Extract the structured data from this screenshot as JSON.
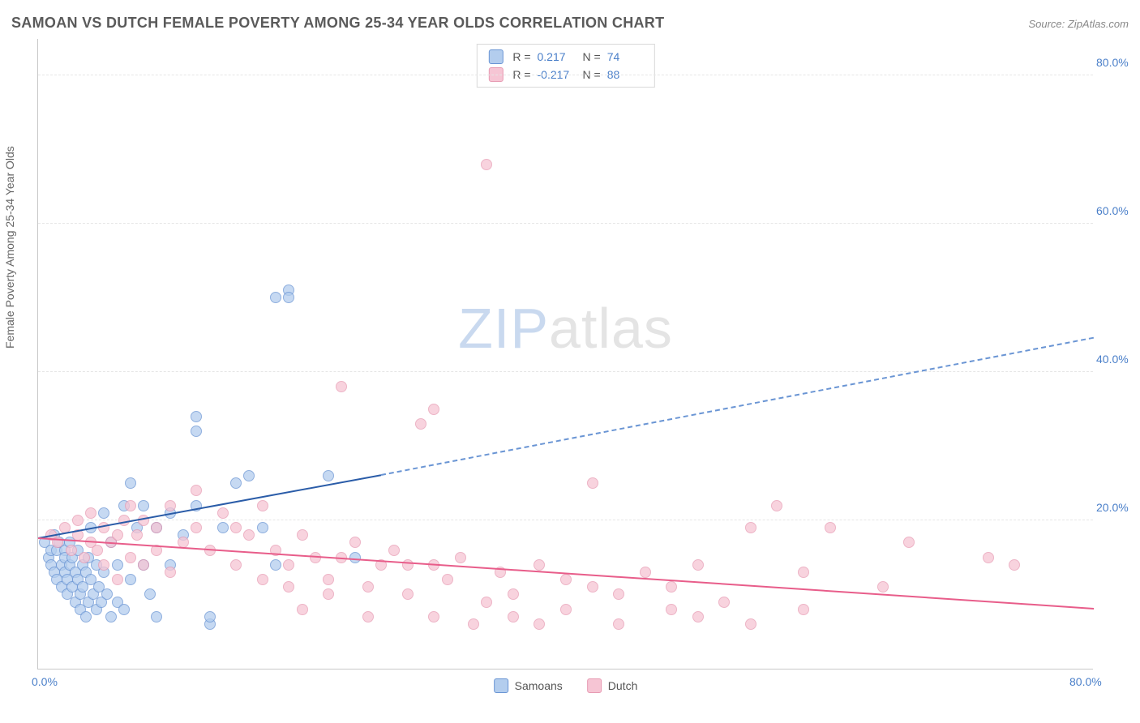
{
  "header": {
    "title": "SAMOAN VS DUTCH FEMALE POVERTY AMONG 25-34 YEAR OLDS CORRELATION CHART",
    "source_prefix": "Source: ",
    "source_name": "ZipAtlas.com"
  },
  "watermark": {
    "zip": "ZIP",
    "atlas": "atlas"
  },
  "chart": {
    "type": "scatter",
    "ylabel": "Female Poverty Among 25-34 Year Olds",
    "background_color": "#ffffff",
    "grid_color": "#e6e6e6",
    "axis_color": "#c8c8c8",
    "xlim": [
      0,
      80
    ],
    "ylim": [
      0,
      85
    ],
    "yticks": [
      {
        "v": 20,
        "label": "20.0%"
      },
      {
        "v": 40,
        "label": "40.0%"
      },
      {
        "v": 60,
        "label": "60.0%"
      },
      {
        "v": 80,
        "label": "80.0%"
      }
    ],
    "xticks": [
      {
        "v": 0,
        "label": "0.0%"
      },
      {
        "v": 80,
        "label": "80.0%"
      }
    ],
    "legend_top": [
      {
        "color_fill": "#b3cdee",
        "color_border": "#6a95d4",
        "R_label": "R =",
        "R_val": "0.217",
        "N_label": "N =",
        "N_val": "74"
      },
      {
        "color_fill": "#f6c5d4",
        "color_border": "#e79bb3",
        "R_label": "R =",
        "R_val": "-0.217",
        "N_label": "N =",
        "N_val": "88"
      }
    ],
    "legend_bottom": [
      {
        "color_fill": "#b3cdee",
        "color_border": "#6a95d4",
        "label": "Samoans"
      },
      {
        "color_fill": "#f6c5d4",
        "color_border": "#e79bb3",
        "label": "Dutch"
      }
    ],
    "trend_lines": [
      {
        "x1": 0,
        "y1": 17.5,
        "x2": 26,
        "y2": 26.0,
        "style": "solid-blue"
      },
      {
        "x1": 26,
        "y1": 26.0,
        "x2": 80,
        "y2": 44.5,
        "style": "dash-blue"
      },
      {
        "x1": 0,
        "y1": 17.5,
        "x2": 80,
        "y2": 8.0,
        "style": "solid-pink"
      }
    ],
    "series": [
      {
        "name": "Samoans",
        "fill": "#b3cdee",
        "stroke": "#6a95d4",
        "opacity": 0.75,
        "radius": 7,
        "points": [
          [
            0.5,
            17
          ],
          [
            0.8,
            15
          ],
          [
            1,
            16
          ],
          [
            1,
            14
          ],
          [
            1.2,
            18
          ],
          [
            1.2,
            13
          ],
          [
            1.4,
            16
          ],
          [
            1.4,
            12
          ],
          [
            1.6,
            17
          ],
          [
            1.8,
            14
          ],
          [
            1.8,
            11
          ],
          [
            2,
            16
          ],
          [
            2,
            15
          ],
          [
            2,
            13
          ],
          [
            2.2,
            12
          ],
          [
            2.2,
            10
          ],
          [
            2.4,
            17
          ],
          [
            2.4,
            14
          ],
          [
            2.6,
            15
          ],
          [
            2.6,
            11
          ],
          [
            2.8,
            13
          ],
          [
            2.8,
            9
          ],
          [
            3,
            16
          ],
          [
            3,
            12
          ],
          [
            3.2,
            10
          ],
          [
            3.2,
            8
          ],
          [
            3.4,
            14
          ],
          [
            3.4,
            11
          ],
          [
            3.6,
            13
          ],
          [
            3.6,
            7
          ],
          [
            3.8,
            15
          ],
          [
            3.8,
            9
          ],
          [
            4,
            19
          ],
          [
            4,
            12
          ],
          [
            4.2,
            10
          ],
          [
            4.4,
            14
          ],
          [
            4.4,
            8
          ],
          [
            4.6,
            11
          ],
          [
            4.8,
            9
          ],
          [
            5,
            21
          ],
          [
            5,
            13
          ],
          [
            5.2,
            10
          ],
          [
            5.5,
            7
          ],
          [
            5.5,
            17
          ],
          [
            6,
            9
          ],
          [
            6,
            14
          ],
          [
            6.5,
            22
          ],
          [
            6.5,
            8
          ],
          [
            7,
            12
          ],
          [
            7,
            25
          ],
          [
            7.5,
            19
          ],
          [
            8,
            14
          ],
          [
            8,
            22
          ],
          [
            8.5,
            10
          ],
          [
            9,
            19
          ],
          [
            9,
            7
          ],
          [
            10,
            21
          ],
          [
            10,
            14
          ],
          [
            11,
            18
          ],
          [
            12,
            32
          ],
          [
            12,
            34
          ],
          [
            12,
            22
          ],
          [
            13,
            6
          ],
          [
            13,
            7
          ],
          [
            14,
            19
          ],
          [
            15,
            25
          ],
          [
            16,
            26
          ],
          [
            17,
            19
          ],
          [
            18,
            14
          ],
          [
            18,
            50
          ],
          [
            19,
            51
          ],
          [
            19,
            50
          ],
          [
            22,
            26
          ],
          [
            24,
            15
          ]
        ]
      },
      {
        "name": "Dutch",
        "fill": "#f6c5d4",
        "stroke": "#e79bb3",
        "opacity": 0.75,
        "radius": 7,
        "points": [
          [
            1,
            18
          ],
          [
            1.5,
            17
          ],
          [
            2,
            19
          ],
          [
            2.5,
            16
          ],
          [
            3,
            18
          ],
          [
            3,
            20
          ],
          [
            3.5,
            15
          ],
          [
            4,
            17
          ],
          [
            4,
            21
          ],
          [
            4.5,
            16
          ],
          [
            5,
            19
          ],
          [
            5,
            14
          ],
          [
            5.5,
            17
          ],
          [
            6,
            18
          ],
          [
            6,
            12
          ],
          [
            6.5,
            20
          ],
          [
            7,
            15
          ],
          [
            7,
            22
          ],
          [
            7.5,
            18
          ],
          [
            8,
            14
          ],
          [
            8,
            20
          ],
          [
            9,
            16
          ],
          [
            9,
            19
          ],
          [
            10,
            22
          ],
          [
            10,
            13
          ],
          [
            11,
            17
          ],
          [
            12,
            19
          ],
          [
            12,
            24
          ],
          [
            13,
            16
          ],
          [
            14,
            21
          ],
          [
            15,
            14
          ],
          [
            15,
            19
          ],
          [
            16,
            18
          ],
          [
            17,
            12
          ],
          [
            17,
            22
          ],
          [
            18,
            16
          ],
          [
            19,
            14
          ],
          [
            19,
            11
          ],
          [
            20,
            18
          ],
          [
            20,
            8
          ],
          [
            21,
            15
          ],
          [
            22,
            12
          ],
          [
            22,
            10
          ],
          [
            23,
            15
          ],
          [
            23,
            38
          ],
          [
            24,
            17
          ],
          [
            25,
            11
          ],
          [
            25,
            7
          ],
          [
            26,
            14
          ],
          [
            27,
            16
          ],
          [
            28,
            10
          ],
          [
            28,
            14
          ],
          [
            29,
            33
          ],
          [
            30,
            14
          ],
          [
            30,
            7
          ],
          [
            30,
            35
          ],
          [
            31,
            12
          ],
          [
            32,
            15
          ],
          [
            33,
            6
          ],
          [
            34,
            9
          ],
          [
            34,
            68
          ],
          [
            35,
            13
          ],
          [
            36,
            7
          ],
          [
            36,
            10
          ],
          [
            38,
            14
          ],
          [
            38,
            6
          ],
          [
            40,
            12
          ],
          [
            40,
            8
          ],
          [
            42,
            25
          ],
          [
            42,
            11
          ],
          [
            44,
            10
          ],
          [
            44,
            6
          ],
          [
            46,
            13
          ],
          [
            48,
            11
          ],
          [
            48,
            8
          ],
          [
            50,
            7
          ],
          [
            50,
            14
          ],
          [
            52,
            9
          ],
          [
            54,
            19
          ],
          [
            54,
            6
          ],
          [
            56,
            22
          ],
          [
            58,
            13
          ],
          [
            58,
            8
          ],
          [
            60,
            19
          ],
          [
            64,
            11
          ],
          [
            66,
            17
          ],
          [
            72,
            15
          ],
          [
            74,
            14
          ]
        ]
      }
    ]
  }
}
